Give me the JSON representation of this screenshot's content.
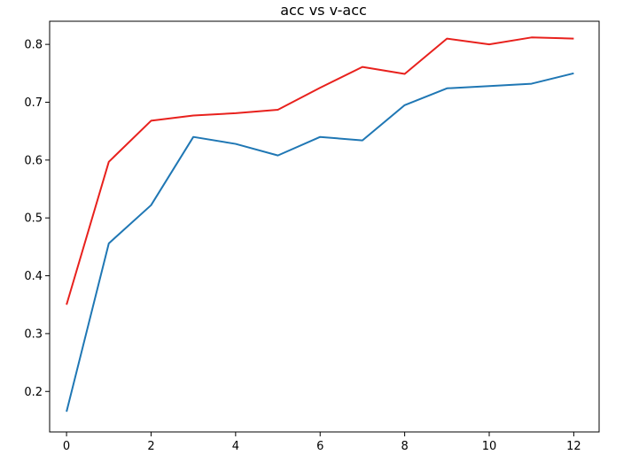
{
  "chart_data": {
    "type": "line",
    "title": "acc vs v-acc",
    "xlabel": "",
    "ylabel": "",
    "x": [
      0,
      1,
      2,
      3,
      4,
      5,
      6,
      7,
      8,
      9,
      10,
      11,
      12
    ],
    "xlim": [
      -0.4,
      12.6
    ],
    "ylim": [
      0.13,
      0.84
    ],
    "xticks": [
      0,
      2,
      4,
      6,
      8,
      10,
      12
    ],
    "yticks": [
      0.2,
      0.3,
      0.4,
      0.5,
      0.6,
      0.7,
      0.8
    ],
    "grid": false,
    "legend": "none",
    "series": [
      {
        "color": "#1f77b4",
        "values": [
          0.165,
          0.456,
          0.522,
          0.64,
          0.628,
          0.608,
          0.64,
          0.634,
          0.695,
          0.724,
          0.728,
          0.732,
          0.75
        ]
      },
      {
        "color": "#e8211d",
        "values": [
          0.35,
          0.597,
          0.668,
          0.677,
          0.681,
          0.687,
          0.725,
          0.761,
          0.749,
          0.81,
          0.8,
          0.812,
          0.81
        ]
      }
    ]
  }
}
